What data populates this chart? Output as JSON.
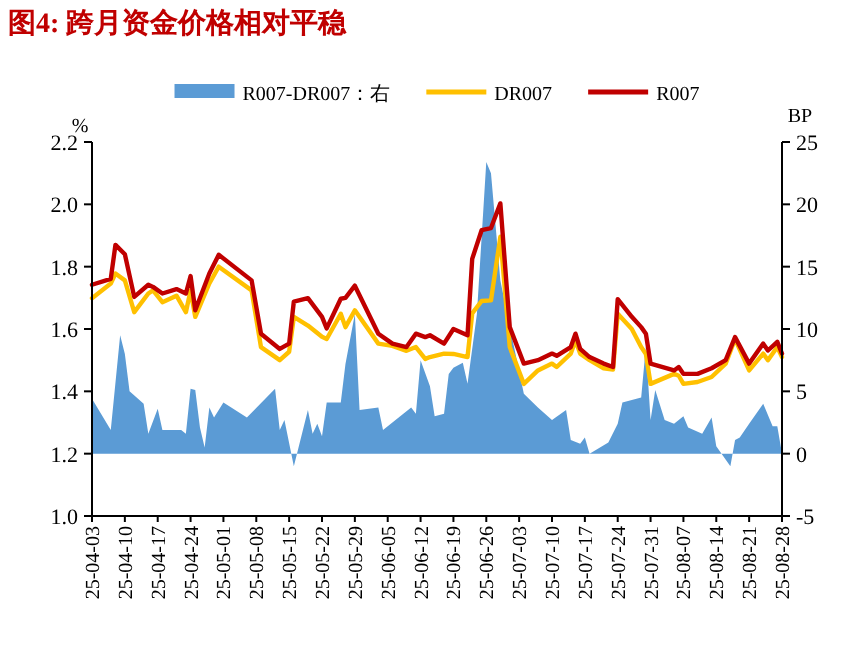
{
  "chart_data": {
    "type": "line",
    "title": "图4:  跨月资金价格相对平稳",
    "ylabel": "%",
    "y2label": "BP",
    "xlim": [
      "--04-03",
      "--08-28"
    ],
    "xticks": [
      {
        "value": "--04-03",
        "label": "25-04-03"
      },
      {
        "value": "--04-10",
        "label": "25-04-10"
      },
      {
        "value": "--04-17",
        "label": "25-04-17"
      },
      {
        "value": "--04-24",
        "label": "25-04-24"
      },
      {
        "value": "--05-01",
        "label": "25-05-01"
      },
      {
        "value": "--05-08",
        "label": "25-05-08"
      },
      {
        "value": "--05-15",
        "label": "25-05-15"
      },
      {
        "value": "--05-22",
        "label": "25-05-22"
      },
      {
        "value": "--05-29",
        "label": "25-05-29"
      },
      {
        "value": "--06-05",
        "label": "25-06-05"
      },
      {
        "value": "--06-12",
        "label": "25-06-12"
      },
      {
        "value": "--06-19",
        "label": "25-06-19"
      },
      {
        "value": "--06-26",
        "label": "25-06-26"
      },
      {
        "value": "--07-03",
        "label": "25-07-03"
      },
      {
        "value": "--07-10",
        "label": "25-07-10"
      },
      {
        "value": "--07-17",
        "label": "25-07-17"
      },
      {
        "value": "--07-24",
        "label": "25-07-24"
      },
      {
        "value": "--07-31",
        "label": "25-07-31"
      },
      {
        "value": "--08-07",
        "label": "25-08-07"
      },
      {
        "value": "--08-14",
        "label": "25-08-14"
      },
      {
        "value": "--08-21",
        "label": "25-08-21"
      },
      {
        "value": "--08-28",
        "label": "25-08-28"
      }
    ],
    "ylim": [
      1.0,
      2.2
    ],
    "yticks": [
      {
        "value": 1.0,
        "label": "1.0"
      },
      1.2,
      1.4,
      1.6,
      1.8,
      {
        "value": 2.0,
        "label": "2.0"
      },
      2.2
    ],
    "y2lim": [
      -5,
      25
    ],
    "y2ticks": [
      -5,
      0,
      5,
      10,
      15,
      20,
      25
    ],
    "legend": "top",
    "grid": false,
    "marker": "none",
    "series": [
      {
        "name": "R007-DR007：右",
        "type": "area",
        "axis": "y2",
        "color": "#5b9bd5",
        "x": [
          "--04-03",
          "--04-07",
          "--04-09",
          "--04-10",
          "--04-11",
          "--04-14",
          "--04-15",
          "--04-17",
          "--04-18",
          "--04-22",
          "--04-23",
          "--04-24",
          "--04-25",
          "--04-26",
          "--04-27",
          "--04-28",
          "--04-29",
          "--05-01",
          "--05-06",
          "--05-12",
          "--05-13",
          "--05-14",
          "--05-16",
          "--05-19",
          "--05-20",
          "--05-21",
          "--05-22",
          "--05-23",
          "--05-26",
          "--05-27",
          "--05-29",
          "--05-30",
          "--06-03",
          "--06-04",
          "--06-10",
          "--06-11",
          "--06-12",
          "--06-14",
          "--06-15",
          "--06-17",
          "--06-18",
          "--06-19",
          "--06-21",
          "--06-22",
          "--06-24",
          "--06-26",
          "--06-27",
          "--06-29",
          "--07-01",
          "--07-04",
          "--07-07",
          "--07-10",
          "--07-13",
          "--07-14",
          "--07-16",
          "--07-17",
          "--07-18",
          "--07-22",
          "--07-24",
          "--07-25",
          "--07-29",
          "--07-30",
          "--07-31",
          "--08-01",
          "--08-03",
          "--08-05",
          "--08-07",
          "--08-08",
          "--08-11",
          "--08-13",
          "--08-14",
          "--08-17",
          "--08-18",
          "--08-19",
          "--08-21",
          "--08-24",
          "--08-26",
          "--08-27",
          "--08-28"
        ],
        "values": [
          4.4,
          1.9,
          9.5,
          8.0,
          5.0,
          4.0,
          1.6,
          3.6,
          1.9,
          1.9,
          1.6,
          5.2,
          5.1,
          2.1,
          0.5,
          3.7,
          2.9,
          4.1,
          2.9,
          5.2,
          1.9,
          2.7,
          -1.0,
          3.5,
          1.6,
          2.4,
          1.4,
          4.1,
          4.1,
          7.2,
          11.2,
          3.5,
          3.7,
          1.9,
          3.7,
          3.2,
          7.5,
          5.4,
          3.0,
          3.2,
          6.4,
          6.9,
          7.3,
          5.6,
          11.2,
          23.4,
          22.5,
          13.9,
          10.2,
          4.8,
          3.7,
          2.7,
          3.5,
          1.1,
          0.8,
          1.3,
          0,
          0.9,
          2.4,
          4.1,
          4.5,
          8.6,
          2.7,
          5.1,
          2.7,
          2.4,
          3.0,
          2.1,
          1.6,
          2.9,
          0.6,
          -1.0,
          1.1,
          1.3,
          2.4,
          4.0,
          2.2,
          2.2,
          0
        ]
      },
      {
        "name": "DR007",
        "type": "line",
        "color": "#ffc000",
        "x": [
          "--04-03",
          "--04-07",
          "--04-08",
          "--04-10",
          "--04-12",
          "--04-15",
          "--04-16",
          "--04-18",
          "--04-21",
          "--04-23",
          "--04-24",
          "--04-25",
          "--04-28",
          "--04-30",
          "--05-07",
          "--05-09",
          "--05-13",
          "--05-15",
          "--05-16",
          "--05-19",
          "--05-22",
          "--05-23",
          "--05-26",
          "--05-27",
          "--05-29",
          "--06-03",
          "--06-06",
          "--06-09",
          "--06-11",
          "--06-13",
          "--06-14",
          "--06-17",
          "--06-19",
          "--06-22",
          "--06-23",
          "--06-25",
          "--06-27",
          "--06-29",
          "--07-01",
          "--07-04",
          "--07-07",
          "--07-10",
          "--07-11",
          "--07-14",
          "--07-15",
          "--07-16",
          "--07-18",
          "--07-21",
          "--07-23",
          "--07-24",
          "--07-27",
          "--07-29",
          "--07-30",
          "--07-31",
          "--08-05",
          "--08-06",
          "--08-07",
          "--08-10",
          "--08-13",
          "--08-16",
          "--08-18",
          "--08-21",
          "--08-24",
          "--08-25",
          "--08-27",
          "--08-28"
        ],
        "values": [
          1.699,
          1.746,
          1.778,
          1.756,
          1.654,
          1.714,
          1.724,
          1.686,
          1.707,
          1.654,
          1.724,
          1.639,
          1.746,
          1.8,
          1.724,
          1.542,
          1.5,
          1.527,
          1.639,
          1.611,
          1.575,
          1.568,
          1.649,
          1.606,
          1.66,
          1.553,
          1.546,
          1.53,
          1.542,
          1.504,
          1.51,
          1.521,
          1.52,
          1.51,
          1.65,
          1.69,
          1.692,
          1.896,
          1.542,
          1.424,
          1.467,
          1.489,
          1.478,
          1.521,
          1.563,
          1.521,
          1.5,
          1.474,
          1.47,
          1.649,
          1.6,
          1.542,
          1.52,
          1.424,
          1.456,
          1.45,
          1.424,
          1.43,
          1.446,
          1.489,
          1.568,
          1.467,
          1.521,
          1.5,
          1.542,
          1.51
        ]
      },
      {
        "name": "R007",
        "type": "line",
        "color": "#c00000",
        "x": [
          "--04-03",
          "--04-07",
          "--04-08",
          "--04-10",
          "--04-12",
          "--04-15",
          "--04-16",
          "--04-18",
          "--04-21",
          "--04-23",
          "--04-24",
          "--04-25",
          "--04-28",
          "--04-30",
          "--05-07",
          "--05-09",
          "--05-13",
          "--05-15",
          "--05-16",
          "--05-19",
          "--05-22",
          "--05-23",
          "--05-26",
          "--05-27",
          "--05-29",
          "--06-03",
          "--06-06",
          "--06-09",
          "--06-11",
          "--06-13",
          "--06-14",
          "--06-17",
          "--06-19",
          "--06-22",
          "--06-23",
          "--06-25",
          "--06-27",
          "--06-29",
          "--07-01",
          "--07-04",
          "--07-07",
          "--07-10",
          "--07-11",
          "--07-14",
          "--07-15",
          "--07-16",
          "--07-18",
          "--07-21",
          "--07-23",
          "--07-24",
          "--07-27",
          "--07-29",
          "--07-30",
          "--07-31",
          "--08-05",
          "--08-06",
          "--08-07",
          "--08-10",
          "--08-13",
          "--08-16",
          "--08-18",
          "--08-21",
          "--08-24",
          "--08-25",
          "--08-27",
          "--08-28"
        ],
        "values": [
          1.742,
          1.761,
          1.87,
          1.84,
          1.703,
          1.742,
          1.735,
          1.714,
          1.728,
          1.714,
          1.77,
          1.66,
          1.778,
          1.838,
          1.756,
          1.585,
          1.536,
          1.553,
          1.688,
          1.699,
          1.639,
          1.602,
          1.697,
          1.7,
          1.739,
          1.585,
          1.553,
          1.542,
          1.585,
          1.574,
          1.58,
          1.553,
          1.6,
          1.58,
          1.825,
          1.917,
          1.924,
          2.003,
          1.606,
          1.489,
          1.5,
          1.521,
          1.514,
          1.542,
          1.585,
          1.536,
          1.51,
          1.489,
          1.478,
          1.696,
          1.639,
          1.606,
          1.585,
          1.489,
          1.467,
          1.478,
          1.456,
          1.456,
          1.474,
          1.5,
          1.574,
          1.489,
          1.553,
          1.531,
          1.559,
          1.521
        ]
      }
    ]
  }
}
